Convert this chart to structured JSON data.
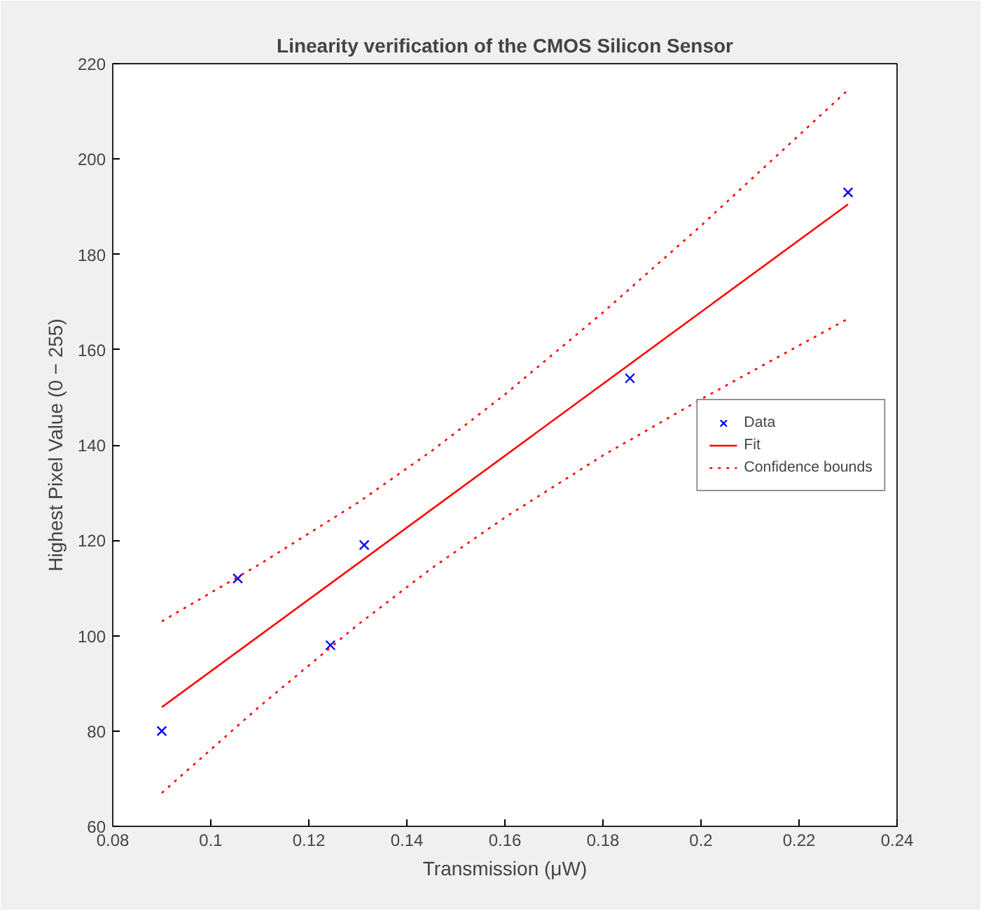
{
  "chart_data": {
    "type": "scatter",
    "title": "Linearity verification of the CMOS Silicon Sensor",
    "xlabel": "Transmission (μW)",
    "ylabel": "Highest Pixel Value (0 − 255)",
    "xlim": [
      0.08,
      0.24
    ],
    "xticks": [
      0.08,
      0.1,
      0.12,
      0.14,
      0.16,
      0.18,
      0.2,
      0.22,
      0.24
    ],
    "ylim": [
      60,
      220
    ],
    "yticks": [
      60,
      80,
      100,
      120,
      140,
      160,
      180,
      200,
      220
    ],
    "grid": false,
    "legend": "right",
    "series": [
      {
        "name": "Data",
        "marker": "cross",
        "color": "#0000ff",
        "x": [
          0.09,
          0.1055,
          0.1244,
          0.1313,
          0.1855,
          0.23
        ],
        "values": [
          80,
          112,
          98,
          119,
          154,
          193
        ]
      },
      {
        "name": "Fit",
        "type": "line",
        "line_style": "solid",
        "color": "#ff0000",
        "x": [
          0.09,
          0.23
        ],
        "values": [
          85,
          190.5
        ]
      },
      {
        "name": "Confidence bounds",
        "type": "line",
        "line_style": "dotted",
        "color": "#ff0000",
        "x": [
          0.09,
          0.11,
          0.13,
          0.145,
          0.16,
          0.18,
          0.2,
          0.23
        ],
        "values": [
          103,
          115,
          127.9,
          138.7,
          150.6,
          167.8,
          186,
          214.5
        ]
      },
      {
        "type": "line",
        "line_style": "dotted",
        "color": "#ff0000",
        "x": [
          0.09,
          0.11,
          0.13,
          0.145,
          0.16,
          0.18,
          0.2,
          0.23
        ],
        "values": [
          67,
          85.2,
          102.3,
          114.1,
          124.8,
          137.8,
          149.6,
          166.5
        ]
      }
    ]
  }
}
